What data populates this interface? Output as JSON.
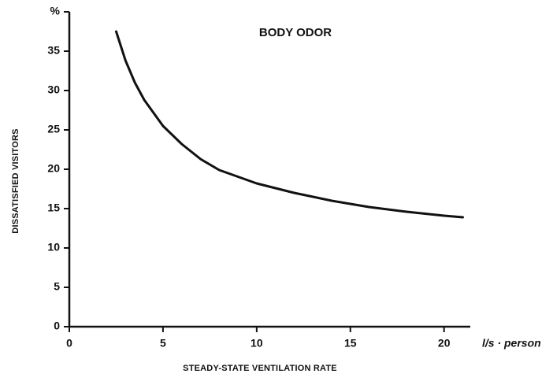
{
  "chart_data": {
    "type": "line",
    "title": "BODY ODOR",
    "x_label": "STEADY-STATE VENTILATION RATE",
    "y_label": "DISSATISFIED VISITORS",
    "x_unit": "l/s · person",
    "x": [
      2.5,
      3,
      3.5,
      4,
      5,
      6,
      7,
      8,
      10,
      12,
      14,
      16,
      18,
      20,
      21
    ],
    "series": [
      {
        "color": "#111111",
        "values": [
          37.5,
          33.8,
          31,
          28.8,
          25.5,
          23.2,
          21.3,
          19.9,
          18.2,
          17,
          16,
          15.2,
          14.6,
          14.1,
          13.9
        ]
      }
    ],
    "xlim": [
      0,
      21.4
    ],
    "ylim": [
      0,
      40
    ],
    "xticks": [
      0,
      5,
      10,
      15,
      20
    ],
    "yticks": [
      0,
      5,
      10,
      15,
      20,
      25,
      30,
      35,
      {
        "value": 40,
        "label": "%"
      }
    ]
  }
}
